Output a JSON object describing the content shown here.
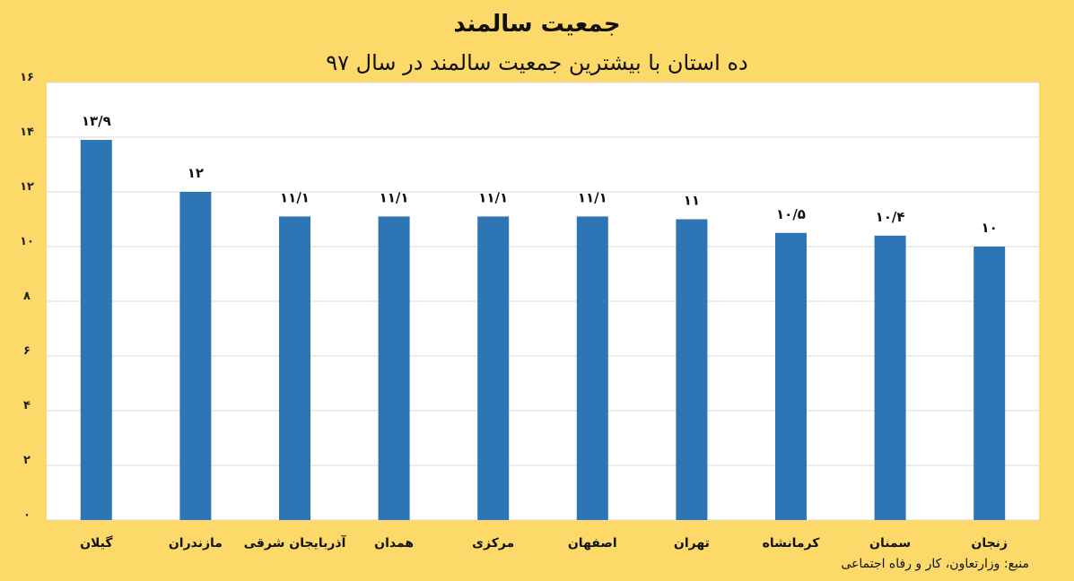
{
  "chart_data": {
    "type": "bar",
    "title": "جمعیت سالمند",
    "subtitle": "ده استان با بیشترین جمعیت سالمند در سال ۹۷",
    "categories": [
      "گیلان",
      "مازندران",
      "آذربایجان شرقی",
      "همدان",
      "مرکزی",
      "اصفهان",
      "تهران",
      "کرمانشاه",
      "سمنان",
      "زنجان"
    ],
    "values": [
      13.9,
      12,
      11.1,
      11.1,
      11.1,
      11.1,
      11,
      10.5,
      10.4,
      10
    ],
    "data_labels": [
      "۱۳/۹",
      "۱۲",
      "۱۱/۱",
      "۱۱/۱",
      "۱۱/۱",
      "۱۱/۱",
      "۱۱",
      "۱۰/۵",
      "۱۰/۴",
      "۱۰"
    ],
    "yticks": [
      0,
      2,
      4,
      6,
      8,
      10,
      12,
      14,
      16
    ],
    "ytick_labels": [
      "۰",
      "۲",
      "۴",
      "۶",
      "۸",
      "۱۰",
      "۱۲",
      "۱۴",
      "۱۶"
    ],
    "ylim": [
      0,
      16
    ],
    "xlabel": "",
    "ylabel": "",
    "grid": true,
    "colors": {
      "bar": "#2E75B6",
      "plot_bg": "#FFFFFF",
      "page_bg": "#FDD969",
      "grid": "#D9D9D9"
    }
  },
  "source": "منبع: وزارتعاون، کار و رفاه اجتماعی"
}
